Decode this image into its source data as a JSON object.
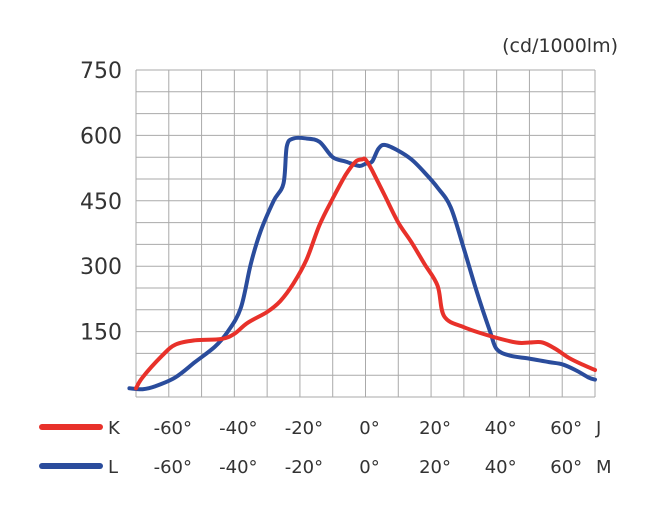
{
  "chart_data": {
    "type": "line",
    "unit_label": "(cd/1000lm)",
    "y_ticks": [
      "150",
      "300",
      "450",
      "600",
      "750"
    ],
    "ylim": [
      0,
      750
    ],
    "xlim": [
      -70,
      70
    ],
    "grid": true,
    "x_rows": [
      {
        "series": "K",
        "ticks": [
          "-60°",
          "-40°",
          "-20°",
          "0°",
          "20°",
          "40°",
          "60°"
        ],
        "end_label": "J"
      },
      {
        "series": "L",
        "ticks": [
          "-60°",
          "-40°",
          "-20°",
          "0°",
          "20°",
          "40°",
          "60°"
        ],
        "end_label": "M"
      }
    ],
    "series": [
      {
        "name": "K",
        "color": "#e8312a",
        "points": [
          [
            -70,
            20
          ],
          [
            -68,
            45
          ],
          [
            -62,
            95
          ],
          [
            -58,
            120
          ],
          [
            -52,
            130
          ],
          [
            -44,
            133
          ],
          [
            -40,
            145
          ],
          [
            -36,
            170
          ],
          [
            -30,
            195
          ],
          [
            -26,
            220
          ],
          [
            -22,
            260
          ],
          [
            -18,
            315
          ],
          [
            -14,
            395
          ],
          [
            -10,
            455
          ],
          [
            -6,
            510
          ],
          [
            -3,
            540
          ],
          [
            -1,
            545
          ],
          [
            0,
            545
          ],
          [
            2,
            520
          ],
          [
            6,
            460
          ],
          [
            10,
            400
          ],
          [
            14,
            355
          ],
          [
            18,
            305
          ],
          [
            22,
            255
          ],
          [
            24,
            185
          ],
          [
            30,
            160
          ],
          [
            38,
            140
          ],
          [
            46,
            125
          ],
          [
            50,
            125
          ],
          [
            54,
            125
          ],
          [
            58,
            110
          ],
          [
            62,
            90
          ],
          [
            66,
            75
          ],
          [
            70,
            62
          ]
        ]
      },
      {
        "name": "L",
        "color": "#2a4c9c",
        "points": [
          [
            -72,
            20
          ],
          [
            -68,
            18
          ],
          [
            -64,
            25
          ],
          [
            -58,
            45
          ],
          [
            -52,
            80
          ],
          [
            -46,
            115
          ],
          [
            -42,
            150
          ],
          [
            -38,
            205
          ],
          [
            -35,
            305
          ],
          [
            -32,
            380
          ],
          [
            -28,
            450
          ],
          [
            -25,
            490
          ],
          [
            -24,
            575
          ],
          [
            -22,
            593
          ],
          [
            -18,
            593
          ],
          [
            -14,
            585
          ],
          [
            -10,
            550
          ],
          [
            -6,
            540
          ],
          [
            -2,
            530
          ],
          [
            0,
            535
          ],
          [
            2,
            540
          ],
          [
            4,
            570
          ],
          [
            6,
            578
          ],
          [
            10,
            565
          ],
          [
            14,
            545
          ],
          [
            18,
            515
          ],
          [
            22,
            480
          ],
          [
            26,
            435
          ],
          [
            30,
            340
          ],
          [
            34,
            240
          ],
          [
            38,
            150
          ],
          [
            40,
            110
          ],
          [
            44,
            95
          ],
          [
            50,
            88
          ],
          [
            56,
            80
          ],
          [
            60,
            75
          ],
          [
            64,
            62
          ],
          [
            68,
            45
          ],
          [
            70,
            40
          ]
        ]
      }
    ]
  }
}
